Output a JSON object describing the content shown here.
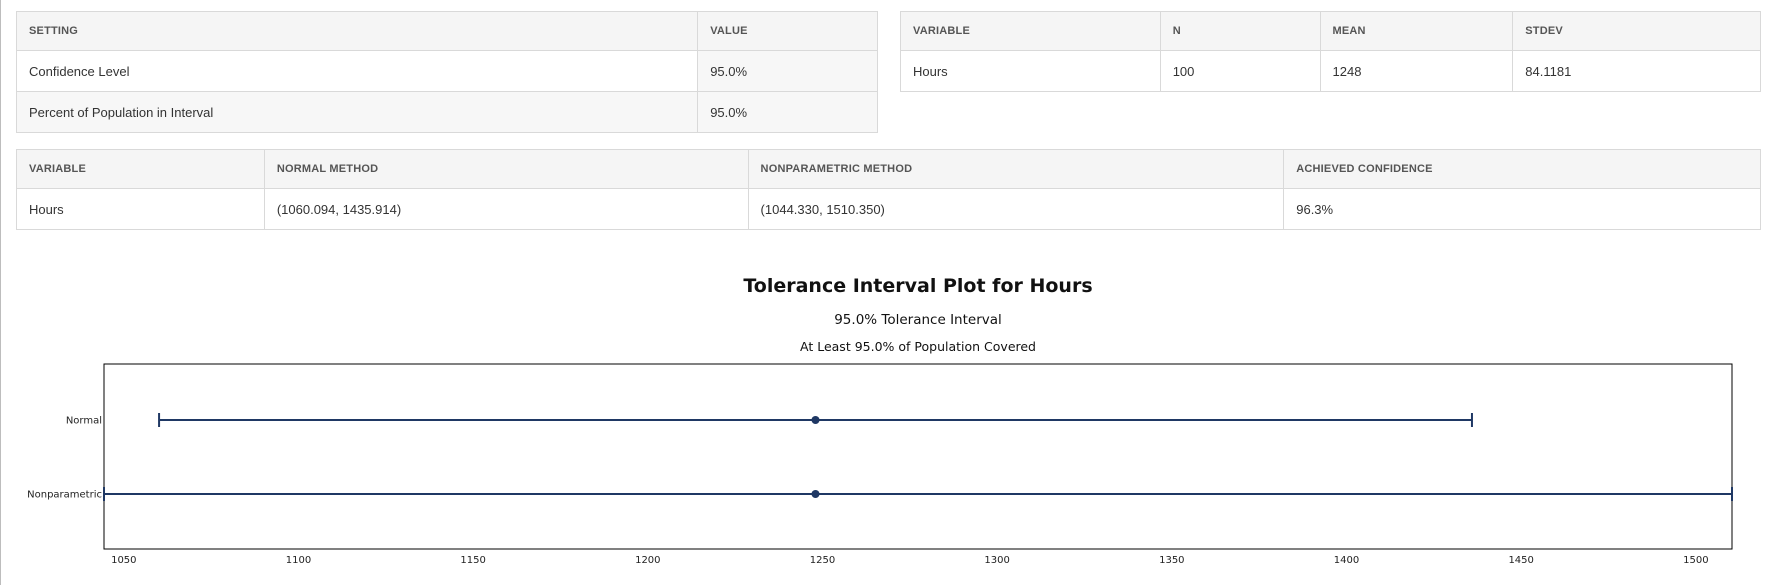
{
  "settings_table": {
    "headers": [
      "SETTING",
      "VALUE"
    ],
    "rows": [
      [
        "Confidence Level",
        "95.0%"
      ],
      [
        "Percent of Population in Interval",
        "95.0%"
      ]
    ]
  },
  "stats_table": {
    "headers": [
      "VARIABLE",
      "N",
      "MEAN",
      "STDEV"
    ],
    "rows": [
      [
        "Hours",
        "100",
        "1248",
        "84.1181"
      ]
    ]
  },
  "intervals_table": {
    "headers": [
      "VARIABLE",
      "NORMAL METHOD",
      "NONPARAMETRIC METHOD",
      "ACHIEVED CONFIDENCE"
    ],
    "rows": [
      [
        "Hours",
        "(1060.094, 1435.914)",
        "(1044.330, 1510.350)",
        "96.3%"
      ]
    ]
  },
  "chart_data": {
    "type": "interval",
    "title": "Tolerance Interval Plot for Hours",
    "subtitle": "95.0% Tolerance Interval",
    "subtitle2": "At Least 95.0% of Population Covered",
    "xlim": [
      1044.33,
      1510.35
    ],
    "x_ticks": [
      1050,
      1100,
      1150,
      1200,
      1250,
      1300,
      1350,
      1400,
      1450,
      1500
    ],
    "categories": [
      "Normal",
      "Nonparametric"
    ],
    "series": [
      {
        "name": "Normal",
        "lower": 1060.094,
        "center": 1248,
        "upper": 1435.914
      },
      {
        "name": "Nonparametric",
        "lower": 1044.33,
        "center": 1248,
        "upper": 1510.35
      }
    ],
    "colors": {
      "interval": "#1f3864",
      "frame": "#000000"
    }
  }
}
